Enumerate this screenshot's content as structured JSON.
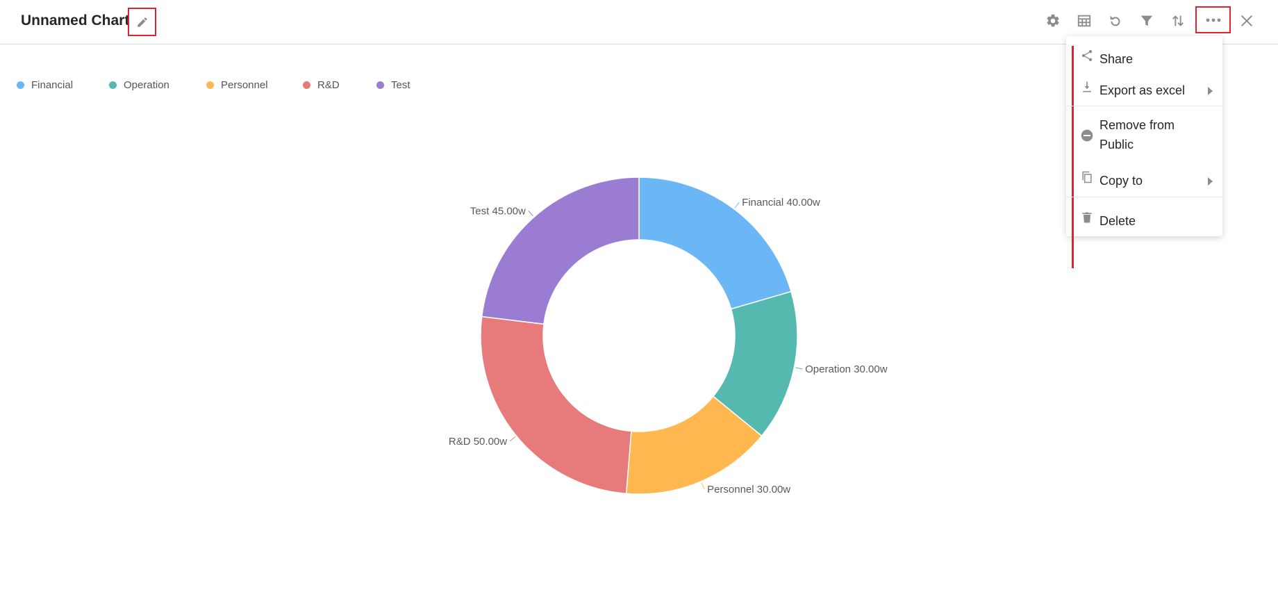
{
  "header": {
    "title": "Unnamed Chart"
  },
  "toolbar": {
    "buttons": [
      {
        "name": "settings",
        "icon": "gear-icon"
      },
      {
        "name": "data-table",
        "icon": "table-icon"
      },
      {
        "name": "refresh",
        "icon": "refresh-icon"
      },
      {
        "name": "filter",
        "icon": "filter-icon"
      },
      {
        "name": "sort",
        "icon": "sort-icon"
      },
      {
        "name": "more",
        "icon": "more-dots-icon"
      },
      {
        "name": "close",
        "icon": "close-icon"
      }
    ]
  },
  "menu": {
    "items": [
      {
        "label": "Share",
        "icon": "share-icon",
        "has_submenu": false
      },
      {
        "label": "Export as excel",
        "icon": "download-icon",
        "has_submenu": true
      },
      {
        "label": "Remove from Public",
        "icon": "minus-circle-icon",
        "has_submenu": false
      },
      {
        "label": "Copy to",
        "icon": "copy-icon",
        "has_submenu": true
      },
      {
        "label": "Delete",
        "icon": "trash-icon",
        "has_submenu": false
      }
    ]
  },
  "chart_data": {
    "type": "pie",
    "donut": true,
    "legend_position": "top-left",
    "categories": [
      "Financial",
      "Operation",
      "Personnel",
      "R&D",
      "Test"
    ],
    "values": [
      40,
      30,
      30,
      50,
      45
    ],
    "value_labels": [
      "40.00w",
      "30.00w",
      "30.00w",
      "50.00w",
      "45.00w"
    ],
    "colors": [
      "#6bb7f5",
      "#56b9b0",
      "#ffb84f",
      "#e77a7a",
      "#9a7dd2"
    ]
  },
  "colors": {
    "accent": "#e0242d",
    "icon": "#8c8c8c"
  }
}
